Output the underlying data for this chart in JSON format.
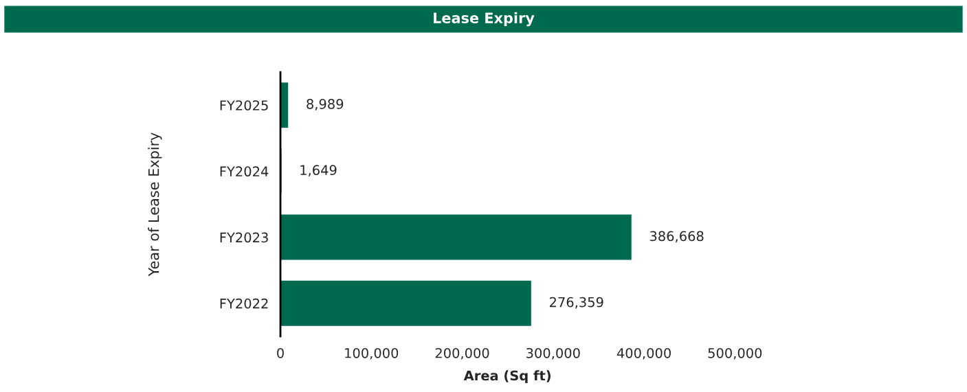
{
  "chart_data": {
    "type": "bar",
    "orientation": "horizontal",
    "title": "Lease Expiry",
    "xlabel": "Area (Sq ft)",
    "ylabel": "Year of Lease Expiry",
    "categories": [
      "FY2025",
      "FY2024",
      "FY2023",
      "FY2022"
    ],
    "values": [
      8989,
      1649,
      386668,
      276359
    ],
    "color": "#006a4e",
    "xlim": [
      0,
      500000
    ],
    "xticks": [
      0,
      {
        "value": 100000,
        "label": "100,000"
      },
      {
        "value": 200000,
        "label": "200,000"
      },
      {
        "value": 300000,
        "label": "300,000"
      },
      {
        "value": 400000,
        "label": "400,000"
      },
      {
        "value": 500000,
        "label": "500,000"
      }
    ],
    "value_labels": [
      "8,989",
      "1,649",
      "386,668",
      "276,359"
    ],
    "grid": false,
    "legend": false
  }
}
